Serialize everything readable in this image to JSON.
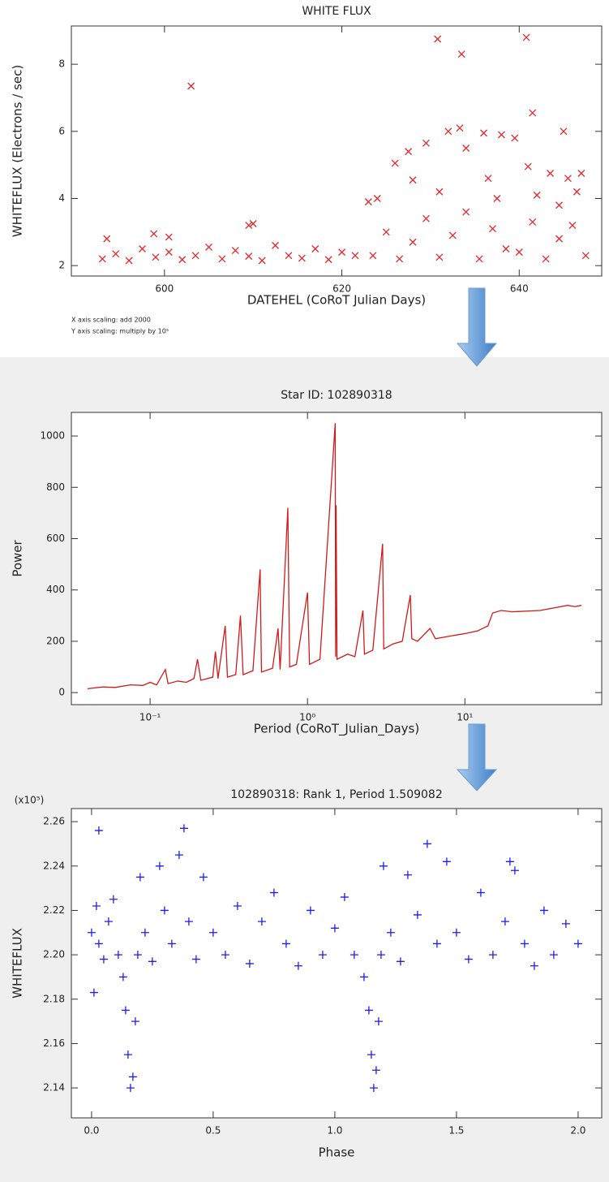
{
  "chart_data": [
    {
      "type": "scatter",
      "title": "WHITE FLUX",
      "xlabel": "DATEHEL (CoRoT Julian Days)",
      "ylabel": "WHITEFLUX (Electrons / sec)",
      "annotations": [
        "X axis scaling: add 2000",
        "Y axis scaling: multiply by 10⁵"
      ],
      "marker": "x",
      "color": "#e3262b",
      "xlim": [
        589.5,
        649.3
      ],
      "ylim": [
        1.69,
        9.14
      ],
      "xticks": [
        600,
        620,
        640
      ],
      "yticks": [
        2,
        4,
        6,
        8
      ],
      "x": [
        593,
        594.5,
        596,
        597.5,
        599,
        600.5,
        602,
        603.5,
        605,
        606.5,
        608,
        609.5,
        611,
        612.5,
        614,
        615.5,
        617,
        618.5,
        620,
        621.5,
        603,
        598.8,
        609.5,
        610,
        600.5,
        593.5,
        623.5,
        625,
        626.5,
        628,
        629.5,
        631,
        632.5,
        634,
        635.5,
        637,
        638.5,
        640,
        641.5,
        643,
        644.5,
        646,
        647.5,
        630.8,
        633.5,
        640.8,
        641.5,
        645,
        632,
        636,
        633.3,
        638,
        639.5,
        627.5,
        629.5,
        626,
        634,
        641,
        643.5,
        645.5,
        647,
        623,
        624,
        628,
        636.5,
        631,
        637.5,
        642,
        644.5,
        646.5
      ],
      "y": [
        2.2,
        2.35,
        2.15,
        2.5,
        2.25,
        2.4,
        2.18,
        2.3,
        2.55,
        2.2,
        2.45,
        2.28,
        2.15,
        2.6,
        2.3,
        2.22,
        2.5,
        2.18,
        2.4,
        2.3,
        7.35,
        2.95,
        3.2,
        3.25,
        2.85,
        2.8,
        2.3,
        3.0,
        2.2,
        2.7,
        3.4,
        2.25,
        2.9,
        3.6,
        2.2,
        3.1,
        2.5,
        2.4,
        3.3,
        2.2,
        2.8,
        3.2,
        2.3,
        8.75,
        8.3,
        8.8,
        6.55,
        6.0,
        6.0,
        5.95,
        6.1,
        5.9,
        5.8,
        5.4,
        5.65,
        5.05,
        5.5,
        4.95,
        4.75,
        4.6,
        4.75,
        3.9,
        4.0,
        4.55,
        4.6,
        4.2,
        4.0,
        4.1,
        3.8,
        4.2
      ]
    },
    {
      "type": "line",
      "title": "Star ID: 102890318",
      "xlabel": "Period (CoRoT_Julian_Days)",
      "ylabel": "Power",
      "color": "#d11a1a",
      "xscale": "log",
      "xlim": [
        0.0316,
        74
      ],
      "ylim": [
        -47,
        1092
      ],
      "xticks": [
        {
          "value": 0.1,
          "label": "10⁻¹"
        },
        {
          "value": 1,
          "label": "10⁰"
        },
        {
          "value": 10,
          "label": "10¹"
        }
      ],
      "yticks": [
        0,
        200,
        400,
        600,
        800,
        1000
      ],
      "x": [
        0.04,
        0.05,
        0.06,
        0.075,
        0.09,
        0.1,
        0.11,
        0.125,
        0.13,
        0.15,
        0.17,
        0.19,
        0.2,
        0.21,
        0.25,
        0.26,
        0.27,
        0.3,
        0.31,
        0.35,
        0.375,
        0.39,
        0.45,
        0.5,
        0.51,
        0.6,
        0.65,
        0.67,
        0.75,
        0.77,
        0.85,
        1.0,
        1.03,
        1.2,
        1.5,
        1.51,
        1.52,
        1.54,
        1.8,
        2.0,
        2.25,
        2.3,
        2.6,
        3.0,
        3.05,
        3.5,
        4.0,
        4.5,
        4.6,
        5.0,
        6.0,
        6.5,
        8.0,
        10.0,
        12.0,
        14.0,
        15.0,
        17.0,
        20.0,
        30.0,
        45.0,
        50.0,
        55.0
      ],
      "y": [
        15,
        22,
        20,
        30,
        28,
        40,
        30,
        90,
        35,
        45,
        40,
        55,
        130,
        48,
        60,
        160,
        55,
        260,
        60,
        70,
        300,
        70,
        85,
        480,
        80,
        95,
        250,
        90,
        720,
        100,
        110,
        390,
        110,
        130,
        1050,
        140,
        730,
        130,
        150,
        140,
        320,
        150,
        165,
        580,
        170,
        190,
        200,
        380,
        210,
        200,
        250,
        210,
        220,
        230,
        240,
        260,
        310,
        320,
        315,
        320,
        340,
        335,
        340
      ]
    },
    {
      "type": "scatter",
      "title": "102890318: Rank 1, Period 1.509082",
      "xlabel": "Phase",
      "ylabel": "WHITEFLUX",
      "y_scale_label": "(x10⁵)",
      "marker": "+",
      "color": "#1f1fe6",
      "xlim": [
        -0.083,
        2.097
      ],
      "ylim": [
        2.1265,
        2.2659
      ],
      "xticks": [
        {
          "value": 0,
          "label": "0.0"
        },
        0.5,
        {
          "value": 1,
          "label": "1.0"
        },
        1.5,
        {
          "value": 2,
          "label": "2.0"
        }
      ],
      "yticks": [
        2.14,
        2.16,
        2.18,
        {
          "value": 2.2,
          "label": "2.20"
        },
        2.22,
        2.24,
        2.26
      ],
      "x": [
        0.0,
        0.02,
        0.03,
        0.05,
        0.07,
        0.09,
        0.11,
        0.13,
        0.14,
        0.15,
        0.16,
        0.17,
        0.18,
        0.19,
        0.2,
        0.22,
        0.25,
        0.28,
        0.3,
        0.33,
        0.36,
        0.4,
        0.43,
        0.46,
        0.5,
        0.55,
        0.6,
        0.65,
        0.7,
        0.75,
        0.8,
        0.85,
        0.9,
        0.95,
        1.0,
        1.04,
        1.08,
        1.12,
        1.14,
        1.15,
        1.16,
        1.17,
        1.18,
        1.19,
        1.2,
        1.23,
        1.27,
        1.3,
        1.34,
        1.38,
        1.42,
        1.46,
        1.5,
        1.55,
        1.6,
        1.65,
        1.7,
        1.74,
        1.78,
        1.82,
        1.86,
        1.9,
        1.95,
        2.0,
        0.03,
        0.01,
        0.38,
        1.72
      ],
      "y": [
        2.21,
        2.222,
        2.205,
        2.198,
        2.215,
        2.225,
        2.2,
        2.19,
        2.175,
        2.155,
        2.14,
        2.145,
        2.17,
        2.2,
        2.235,
        2.21,
        2.197,
        2.24,
        2.22,
        2.205,
        2.245,
        2.215,
        2.198,
        2.235,
        2.21,
        2.2,
        2.222,
        2.196,
        2.215,
        2.228,
        2.205,
        2.195,
        2.22,
        2.2,
        2.212,
        2.226,
        2.2,
        2.19,
        2.175,
        2.155,
        2.14,
        2.148,
        2.17,
        2.2,
        2.24,
        2.21,
        2.197,
        2.236,
        2.218,
        2.25,
        2.205,
        2.242,
        2.21,
        2.198,
        2.228,
        2.2,
        2.215,
        2.238,
        2.205,
        2.195,
        2.22,
        2.2,
        2.214,
        2.205,
        2.256,
        2.183,
        2.257,
        2.242
      ]
    }
  ]
}
